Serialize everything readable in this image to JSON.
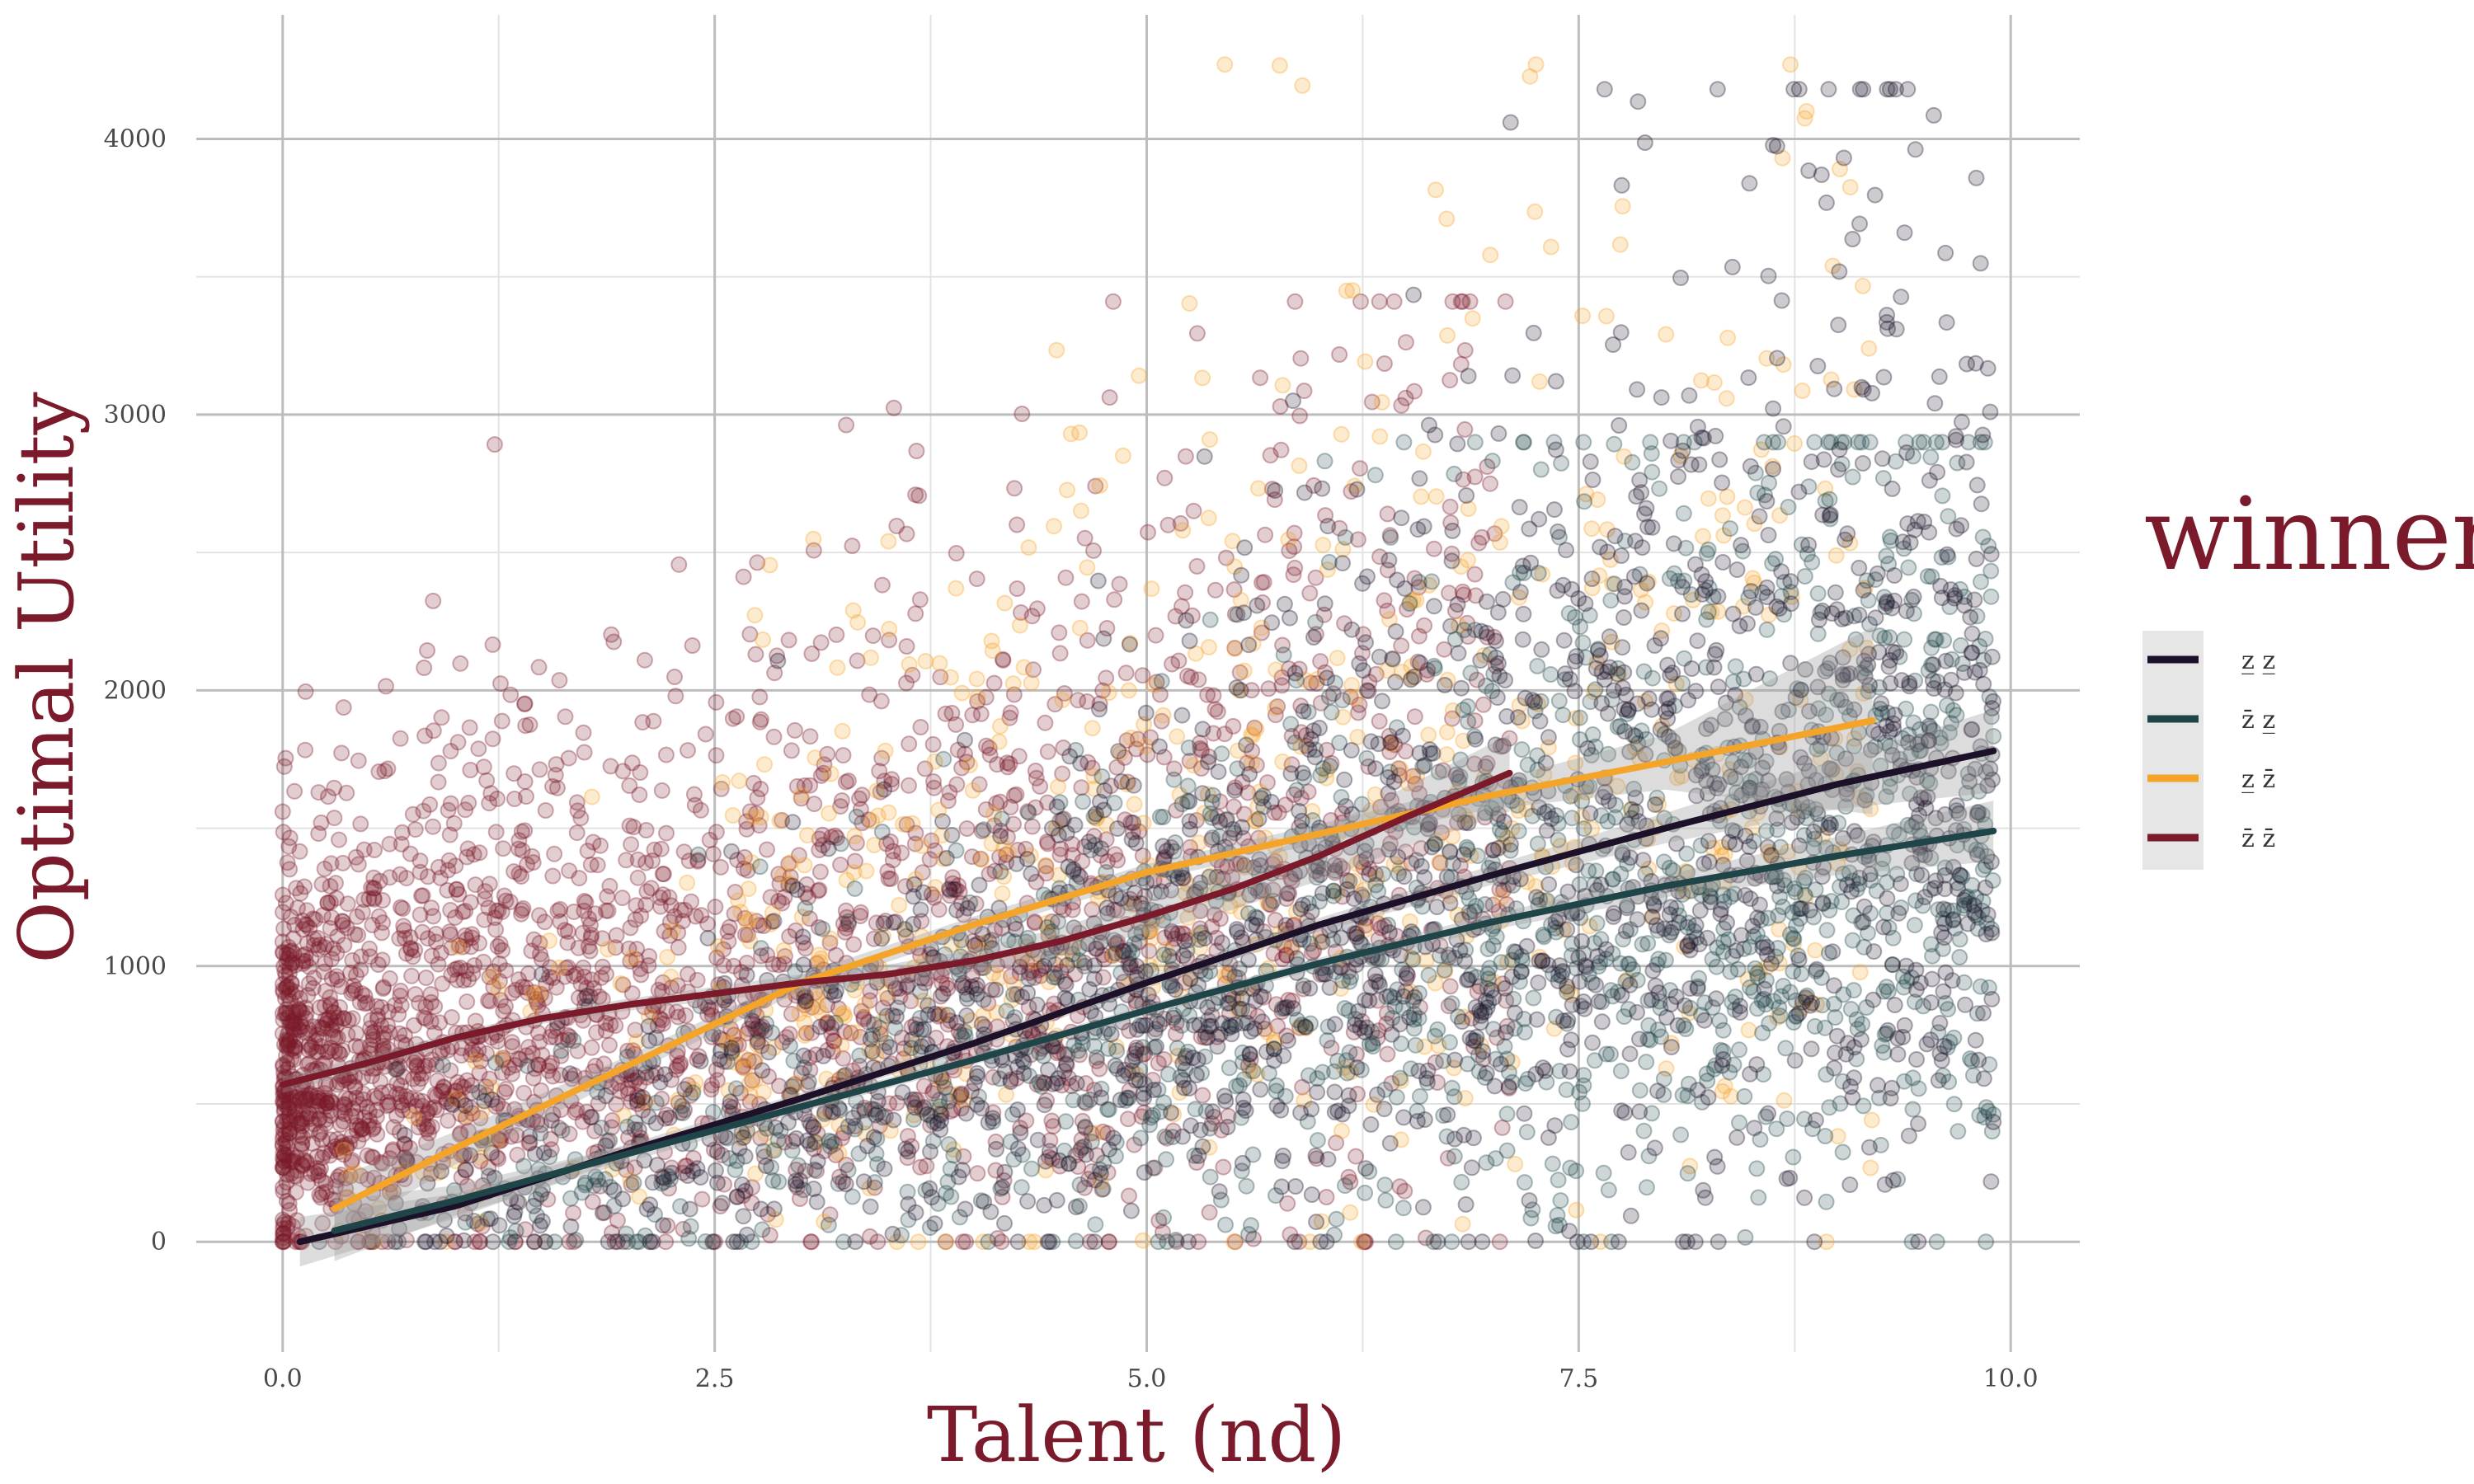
{
  "chart_data": {
    "type": "scatter",
    "title": "",
    "xlabel": "Talent (nd)",
    "ylabel": "Optimal Utility",
    "xlim": [
      -0.5,
      10.4
    ],
    "ylim": [
      -400,
      4450
    ],
    "x_ticks": [
      0.0,
      2.5,
      5.0,
      7.5,
      10.0
    ],
    "x_tick_labels": [
      "0.0",
      "2.5",
      "5.0",
      "7.5",
      "10.0"
    ],
    "y_ticks": [
      0,
      1000,
      2000,
      3000,
      4000
    ],
    "y_tick_labels": [
      "0",
      "1000",
      "2000",
      "3000",
      "4000"
    ],
    "grid": true,
    "legend": {
      "title": "winner",
      "placement": "right",
      "entries": [
        {
          "label": "z̲ z̲",
          "color": "#1c1128"
        },
        {
          "label": "z̄ z̲",
          "color": "#1f4549"
        },
        {
          "label": "z̲ z̄",
          "color": "#f5a42a"
        },
        {
          "label": "z̄ z̄",
          "color": "#7a1a2a"
        }
      ]
    },
    "point_alpha": 0.22,
    "series": [
      {
        "name": "z̲ z̲",
        "color": "#1c1128",
        "x_range": [
          0.1,
          9.9
        ],
        "smooth_x": [
          0.1,
          1,
          2,
          3,
          4,
          5,
          6,
          7,
          8,
          9,
          9.9
        ],
        "smooth_y": [
          0,
          130,
          330,
          520,
          720,
          940,
          1150,
          1330,
          1500,
          1660,
          1780
        ],
        "band_halfwidth": [
          90,
          45,
          25,
          20,
          20,
          20,
          25,
          35,
          55,
          90,
          150
        ],
        "points_summary": {
          "count": 1600,
          "x_range": [
            0.1,
            9.9
          ],
          "y_max_observed": 4180
        }
      },
      {
        "name": "z̄ z̲",
        "color": "#1f4549",
        "x_range": [
          0.3,
          9.9
        ],
        "smooth_x": [
          0.3,
          1,
          2,
          3,
          4,
          5,
          6,
          7,
          8,
          9,
          9.9
        ],
        "smooth_y": [
          40,
          150,
          320,
          490,
          660,
          840,
          1010,
          1160,
          1290,
          1400,
          1490
        ],
        "band_halfwidth": [
          110,
          55,
          30,
          20,
          18,
          18,
          20,
          28,
          40,
          70,
          110
        ],
        "points_summary": {
          "count": 1500,
          "x_range": [
            0.3,
            9.9
          ],
          "y_max_observed": 2900
        }
      },
      {
        "name": "z̲ z̄",
        "color": "#f5a42a",
        "x_range": [
          0.3,
          9.2
        ],
        "smooth_x": [
          0.3,
          1,
          2,
          3,
          4,
          5,
          6,
          7,
          8,
          9.2
        ],
        "smooth_y": [
          120,
          340,
          640,
          940,
          1150,
          1340,
          1480,
          1620,
          1740,
          1890
        ],
        "band_halfwidth": [
          110,
          60,
          35,
          30,
          30,
          30,
          35,
          50,
          100,
          340
        ],
        "points_summary": {
          "count": 700,
          "x_range": [
            0.3,
            9.2
          ],
          "y_max_observed": 4270
        }
      },
      {
        "name": "z̄ z̄",
        "color": "#7a1a2a",
        "x_range": [
          0.0,
          7.1
        ],
        "smooth_x": [
          0.0,
          0.5,
          1,
          1.5,
          2,
          2.5,
          3,
          3.5,
          4,
          4.5,
          5,
          5.5,
          6,
          6.5,
          7.1
        ],
        "smooth_y": [
          570,
          650,
          740,
          810,
          860,
          900,
          940,
          970,
          1020,
          1090,
          1180,
          1280,
          1400,
          1540,
          1700
        ],
        "band_halfwidth": [
          30,
          25,
          20,
          20,
          22,
          25,
          30,
          35,
          40,
          50,
          60,
          75,
          90,
          110,
          140
        ],
        "points_summary": {
          "count": 2600,
          "x_range": [
            0.0,
            7.1
          ],
          "y_max_observed": 3410
        }
      }
    ]
  }
}
